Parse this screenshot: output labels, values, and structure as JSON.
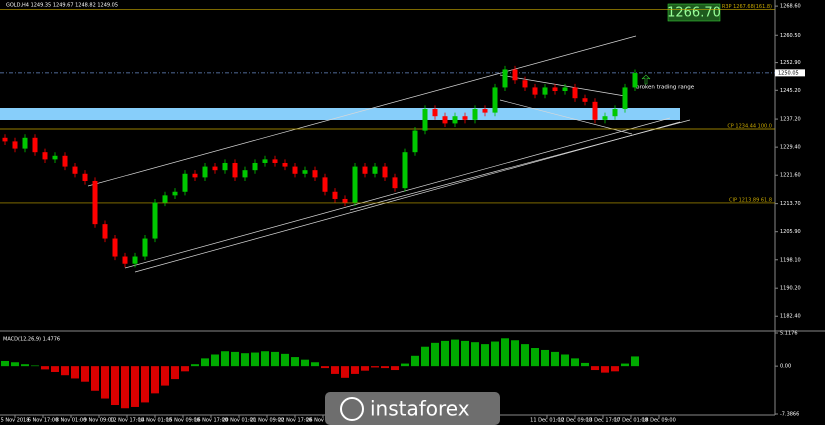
{
  "chart_data": {
    "type": "candlestick",
    "title": "GOLD,H4 1249.35 1249.67 1248.82 1249.05",
    "ylim": [
      1178.3,
      1270.3
    ],
    "yticks": [
      {
        "value": 1268.6,
        "label": "1268.60"
      },
      {
        "value": 1260.5,
        "label": "1260.50"
      },
      {
        "value": 1252.9,
        "label": "1252.90"
      },
      {
        "value": 1245.2,
        "label": "1245.20"
      },
      {
        "value": 1237.2,
        "label": "1237.20"
      },
      {
        "value": 1229.4,
        "label": "1229.40"
      },
      {
        "value": 1221.6,
        "label": "1221.60"
      },
      {
        "value": 1213.7,
        "label": "1213.70"
      },
      {
        "value": 1205.9,
        "label": "1205.90"
      },
      {
        "value": 1198.1,
        "label": "1198.10"
      },
      {
        "value": 1190.2,
        "label": "1190.20"
      },
      {
        "value": 1182.4,
        "label": "1182.40"
      }
    ],
    "up_color": "#00c800",
    "down_color": "#ff0000",
    "open": [
      1232,
      1231,
      1229,
      1232,
      1228,
      1226,
      1227,
      1224,
      1222,
      1220,
      1208,
      1204,
      1199,
      1197,
      1199,
      1204,
      1214,
      1216,
      1217,
      1222,
      1221,
      1224,
      1223,
      1225,
      1221,
      1223,
      1225,
      1226,
      1225,
      1224,
      1222,
      1223,
      1221,
      1217,
      1215,
      1214,
      1224,
      1222,
      1224,
      1221,
      1218,
      1228,
      1234,
      1240,
      1238,
      1236,
      1238,
      1237,
      1240,
      1239,
      1246,
      1251,
      1248,
      1246,
      1244,
      1246,
      1245,
      1246,
      1243,
      1242,
      1237,
      1238,
      1240,
      1246
    ],
    "high": [
      1233,
      1232,
      1233,
      1233,
      1229,
      1228,
      1228,
      1225,
      1223,
      1221,
      1209,
      1205,
      1200,
      1200,
      1205,
      1215,
      1217,
      1218,
      1223,
      1223,
      1225,
      1225,
      1226,
      1226,
      1224,
      1226,
      1227,
      1227,
      1226,
      1225,
      1224,
      1224,
      1222,
      1218,
      1216,
      1225,
      1225,
      1225,
      1225,
      1222,
      1229,
      1235,
      1241,
      1241,
      1239,
      1239,
      1239,
      1241,
      1241,
      1247,
      1252,
      1252,
      1249,
      1247,
      1247,
      1247,
      1247,
      1247,
      1244,
      1243,
      1239,
      1241,
      1247,
      1251
    ],
    "low": [
      1230,
      1228,
      1228,
      1227,
      1225,
      1225,
      1223,
      1221,
      1219,
      1207,
      1203,
      1198,
      1196,
      1196,
      1198,
      1203,
      1213,
      1215,
      1216,
      1220,
      1220,
      1222,
      1222,
      1220,
      1220,
      1222,
      1224,
      1224,
      1223,
      1221,
      1221,
      1220,
      1216,
      1214,
      1213,
      1213,
      1221,
      1221,
      1220,
      1217,
      1217,
      1227,
      1233,
      1237,
      1235,
      1235,
      1236,
      1236,
      1238,
      1238,
      1245,
      1247,
      1245,
      1243,
      1243,
      1244,
      1244,
      1242,
      1241,
      1236,
      1236,
      1237,
      1239,
      1245
    ],
    "close": [
      1231,
      1229,
      1232,
      1228,
      1226,
      1227,
      1224,
      1222,
      1220,
      1208,
      1204,
      1199,
      1197,
      1199,
      1204,
      1214,
      1216,
      1217,
      1222,
      1221,
      1224,
      1223,
      1225,
      1221,
      1223,
      1225,
      1226,
      1225,
      1224,
      1222,
      1223,
      1221,
      1217,
      1215,
      1214,
      1224,
      1222,
      1224,
      1221,
      1218,
      1228,
      1234,
      1240,
      1238,
      1236,
      1238,
      1237,
      1240,
      1239,
      1246,
      1251,
      1248,
      1246,
      1244,
      1246,
      1245,
      1246,
      1243,
      1242,
      1237,
      1238,
      1240,
      1246,
      1250
    ],
    "levels": [
      {
        "value": 1267.68,
        "label": "R3P 1267.68(161.8)"
      },
      {
        "value": 1234.44,
        "label": "CP 1234.44 100.0"
      },
      {
        "value": 1213.89,
        "label": "CIP 1213.89 61.8"
      }
    ],
    "level_color": "#c8a800",
    "current_price": 1250.05,
    "target_label": "1266.70",
    "annotation": "broken trading range",
    "x_labels": [
      "5 Nov 2018",
      "6 Nov 17:00",
      "8 Nov 01:00",
      "9 Nov 09:00",
      "12 Nov 17:00",
      "14 Nov 01:00",
      "15 Nov 09:00",
      "16 Nov 17:00",
      "20 Nov 01:00",
      "21 Nov 09:00",
      "22 Nov 17:00",
      "26 Nov 01:00",
      null,
      null,
      null,
      null,
      null,
      null,
      null,
      "11 Dec 01:00",
      "12 Dec 09:00",
      "13 Dec 17:00",
      "17 Dec 01:00",
      "18 Dec 09:00"
    ],
    "indicator": {
      "label": "MACD(12,26,9) 1.4776",
      "ylim": [
        -7.3866,
        5.1176
      ],
      "yticks": [
        5.1176,
        {
          "value": 0,
          "label": "0.00"
        },
        -7.3866
      ],
      "positive_color": "#00c800",
      "negative_color": "#ff0000",
      "values": [
        0.8,
        0.6,
        0.3,
        0.1,
        -0.5,
        -0.9,
        -1.4,
        -1.9,
        -2.4,
        -3.8,
        -5.0,
        -6.0,
        -6.5,
        -6.3,
        -5.6,
        -4.2,
        -3.0,
        -2.0,
        -0.8,
        0.3,
        1.2,
        1.8,
        2.3,
        2.2,
        2.0,
        2.1,
        2.3,
        2.2,
        1.9,
        1.4,
        1.0,
        0.6,
        -0.3,
        -1.2,
        -1.8,
        -1.2,
        -0.7,
        -0.2,
        -0.3,
        -0.6,
        0.4,
        1.6,
        3.0,
        3.6,
        3.9,
        4.1,
        3.9,
        3.7,
        3.4,
        3.8,
        4.3,
        4.0,
        3.4,
        2.8,
        2.5,
        2.2,
        1.8,
        1.2,
        0.5,
        -0.6,
        -1.0,
        -0.8,
        0.4,
        1.5
      ]
    },
    "watermark": "instaforex"
  }
}
